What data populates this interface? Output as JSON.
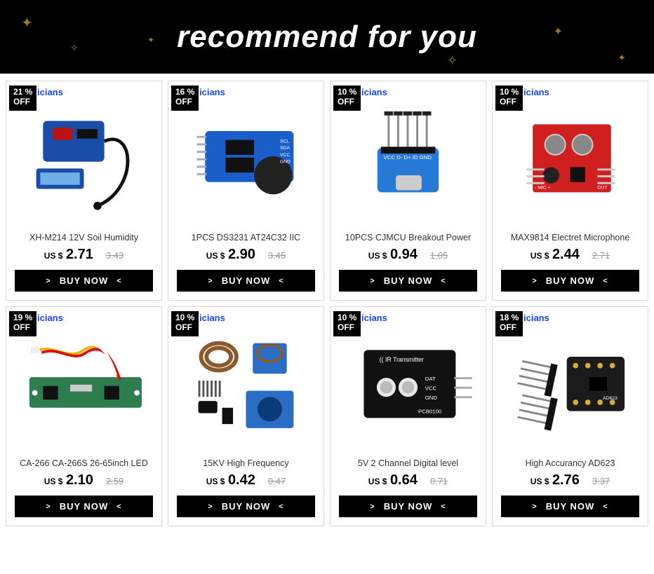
{
  "banner": {
    "title": "recommend for you",
    "background": "#000000",
    "text_color": "#ffffff",
    "sparkle_color": "#d4af37"
  },
  "watermark_text": "icians",
  "watermark_color": "#1844ff",
  "buy_label": "BUY NOW",
  "currency_label": "US $",
  "off_label": "OFF",
  "products": [
    {
      "discount": "21 %",
      "title": "XH-M214 12V Soil Humidity",
      "price": "2.71",
      "old_price": "3.43",
      "image_hint": "blue-soil-sensor-module",
      "primary_color": "#1a4da8",
      "accent_color": "#111111"
    },
    {
      "discount": "16 %",
      "title": "1PCS DS3231 AT24C32 IIC",
      "price": "2.90",
      "old_price": "3.45",
      "image_hint": "blue-rtc-module",
      "primary_color": "#1a5fc9",
      "accent_color": "#222222"
    },
    {
      "discount": "10 %",
      "title": "10PCS CJMCU Breakout Power",
      "price": "0.94",
      "old_price": "1.05",
      "image_hint": "blue-usb-breakout",
      "primary_color": "#2679d6",
      "accent_color": "#8a8a8a"
    },
    {
      "discount": "10 %",
      "title": "MAX9814 Electret Microphone",
      "price": "2.44",
      "old_price": "2.71",
      "image_hint": "red-mic-module",
      "primary_color": "#d11f1f",
      "accent_color": "#222222"
    },
    {
      "discount": "19 %",
      "title": "CA-266 CA-266S 26-65inch LED",
      "price": "2.10",
      "old_price": "2.59",
      "image_hint": "green-led-driver-board",
      "primary_color": "#2e7d4f",
      "accent_color": "#e6b800"
    },
    {
      "discount": "10 %",
      "title": "15KV High Frequency",
      "price": "0.42",
      "old_price": "0.47",
      "image_hint": "transformer-kit",
      "primary_color": "#2b6cc4",
      "accent_color": "#8a5a2b"
    },
    {
      "discount": "10 %",
      "title": "5V 2 Channel Digital level",
      "price": "0.64",
      "old_price": "0.71",
      "image_hint": "black-ir-transmitter",
      "primary_color": "#111111",
      "accent_color": "#e8e8e8"
    },
    {
      "discount": "18 %",
      "title": "High Accurancy AD623",
      "price": "2.76",
      "old_price": "3.37",
      "image_hint": "black-ad623-module",
      "primary_color": "#1b1b1b",
      "accent_color": "#d4af37"
    }
  ]
}
